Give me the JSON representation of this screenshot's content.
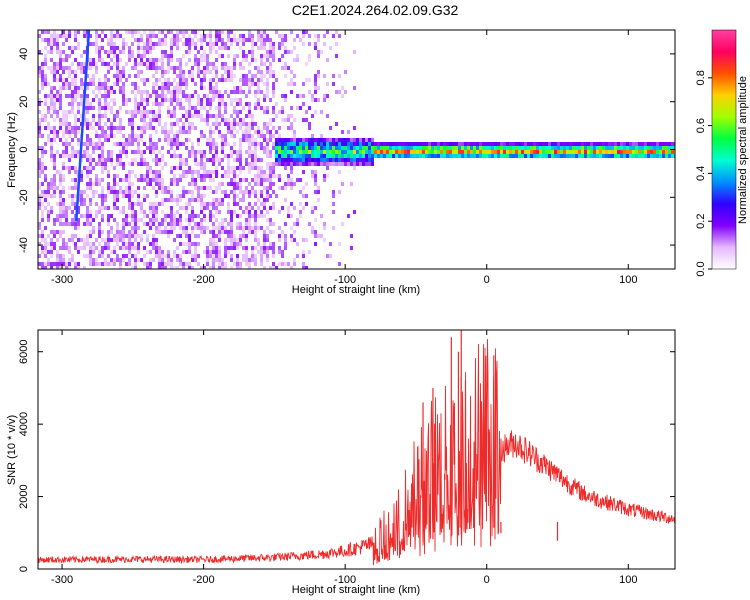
{
  "window": {
    "title": "C2E1.2024.264.02.09.G32"
  },
  "chart_data": [
    {
      "type": "heatmap",
      "title": "C2E1.2024.264.02.09.G32",
      "xlabel": "Height of straight line (km)",
      "ylabel": "Frequency (Hz)",
      "xlim": [
        -317,
        133
      ],
      "ylim": [
        -50,
        50
      ],
      "x_ticks": [
        -300,
        -200,
        -100,
        0,
        100
      ],
      "y_ticks": [
        -40,
        -20,
        0,
        20,
        40
      ],
      "colorbar": {
        "label": "Normalized spectral amplitude",
        "range": [
          0,
          1
        ],
        "ticks": [
          "0.0",
          "0.2",
          "0.4",
          "0.6",
          "0.8"
        ],
        "colormap": [
          "#ffffff",
          "#e6b8ff",
          "#8000ff",
          "#3000ff",
          "#0090ff",
          "#00ffd0",
          "#00ff40",
          "#a0ff00",
          "#ffd000",
          "#ff5000",
          "#ff0060",
          "#ff40a0"
        ]
      },
      "features": {
        "noise_region_x": [
          -317,
          -90
        ],
        "signal_track_frequency_hz": 0,
        "signal_track_x": [
          -150,
          133
        ],
        "slanted_line": {
          "x": [
            -290,
            -281
          ],
          "y": [
            -30,
            50
          ]
        }
      }
    },
    {
      "type": "line",
      "xlabel": "Height of straight line (km)",
      "ylabel": "SNR (10 * v/v)",
      "xlim": [
        -317,
        133
      ],
      "ylim": [
        0,
        6600
      ],
      "x_ticks": [
        -300,
        -200,
        -100,
        0,
        100
      ],
      "y_ticks": [
        0,
        2000,
        4000,
        6000
      ],
      "grid": false,
      "series": [
        {
          "color": "#ee2b2b",
          "x": [
            -317,
            -300,
            -250,
            -200,
            -150,
            -120,
            -100,
            -80,
            -70,
            -60,
            -50,
            -40,
            -30,
            -20,
            -10,
            0,
            5,
            10,
            20,
            30,
            40,
            50,
            60,
            70,
            80,
            90,
            100,
            110,
            120,
            133
          ],
          "y": [
            250,
            260,
            270,
            260,
            320,
            400,
            500,
            700,
            1000,
            1400,
            2200,
            2700,
            2900,
            3100,
            3500,
            4100,
            3800,
            3300,
            3500,
            3200,
            2900,
            2600,
            2300,
            2050,
            1900,
            1780,
            1650,
            1560,
            1470,
            1380
          ]
        }
      ],
      "annotations": {
        "spikes": [
          {
            "x": -45,
            "y": 4600
          },
          {
            "x": -38,
            "y": 5000
          },
          {
            "x": -25,
            "y": 6400
          },
          {
            "x": -20,
            "y": 6000
          },
          {
            "x": -18,
            "y": 6600
          },
          {
            "x": -15,
            "y": 5200
          },
          {
            "x": 5,
            "y": 5900
          },
          {
            "x": 10,
            "y": 1300
          },
          {
            "x": 50,
            "y": 1300
          }
        ]
      }
    }
  ]
}
